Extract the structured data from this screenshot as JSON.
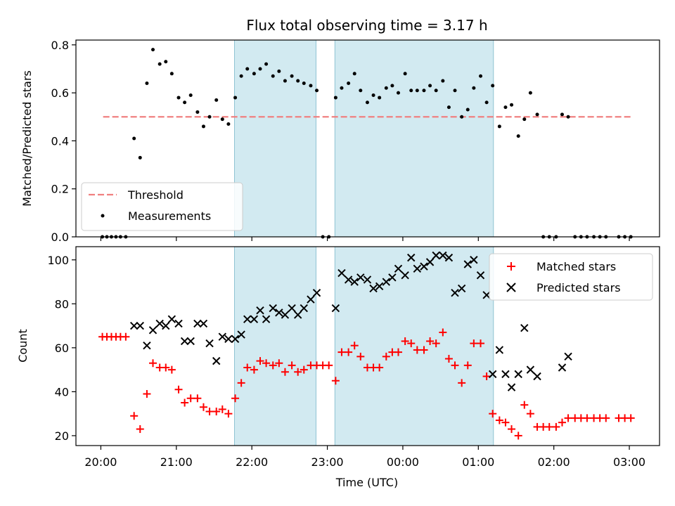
{
  "chart_data": {
    "title": "Flux total observing time = 3.17 h",
    "xlabel": "Time (UTC)",
    "x_unit": "hours since 20:00 UTC",
    "xlim": [
      -0.33,
      7.4
    ],
    "xticks": [
      0,
      1,
      2,
      3,
      4,
      5,
      6,
      7
    ],
    "xtick_labels": [
      "20:00",
      "21:00",
      "22:00",
      "23:00",
      "00:00",
      "01:00",
      "02:00",
      "03:00"
    ],
    "shaded_spans": [
      [
        1.77,
        2.85
      ],
      [
        3.1,
        5.2
      ]
    ],
    "span_color": "#add8e6",
    "panels": [
      {
        "id": "ratio",
        "type": "scatter",
        "ylabel": "Matched/Predicted stars",
        "ylim": [
          0,
          0.82
        ],
        "yticks": [
          0.0,
          0.2,
          0.4,
          0.6,
          0.8
        ],
        "ytick_labels": [
          "0.0",
          "0.2",
          "0.4",
          "0.6",
          "0.8"
        ],
        "threshold": {
          "name": "Threshold",
          "value": 0.5,
          "x_range": [
            0.03,
            7.03
          ],
          "color": "#f08080"
        },
        "legend": {
          "position": "lower-left",
          "entries": [
            "Threshold",
            "Measurements"
          ]
        },
        "series": [
          {
            "name": "Measurements",
            "color": "#000000",
            "marker": "dot",
            "points": [
              [
                0.02,
                0.0
              ],
              [
                0.08,
                0.0
              ],
              [
                0.14,
                0.0
              ],
              [
                0.2,
                0.0
              ],
              [
                0.26,
                0.0
              ],
              [
                0.33,
                0.0
              ],
              [
                0.44,
                0.41
              ],
              [
                0.52,
                0.33
              ],
              [
                0.61,
                0.64
              ],
              [
                0.69,
                0.78
              ],
              [
                0.78,
                0.72
              ],
              [
                0.86,
                0.73
              ],
              [
                0.94,
                0.68
              ],
              [
                1.03,
                0.58
              ],
              [
                1.11,
                0.56
              ],
              [
                1.19,
                0.59
              ],
              [
                1.28,
                0.52
              ],
              [
                1.36,
                0.46
              ],
              [
                1.44,
                0.5
              ],
              [
                1.53,
                0.57
              ],
              [
                1.61,
                0.49
              ],
              [
                1.69,
                0.47
              ],
              [
                1.78,
                0.58
              ],
              [
                1.86,
                0.67
              ],
              [
                1.94,
                0.7
              ],
              [
                2.03,
                0.68
              ],
              [
                2.11,
                0.7
              ],
              [
                2.19,
                0.72
              ],
              [
                2.28,
                0.67
              ],
              [
                2.36,
                0.69
              ],
              [
                2.44,
                0.65
              ],
              [
                2.53,
                0.67
              ],
              [
                2.61,
                0.65
              ],
              [
                2.69,
                0.64
              ],
              [
                2.78,
                0.63
              ],
              [
                2.86,
                0.61
              ],
              [
                2.94,
                0.0
              ],
              [
                3.02,
                0.0
              ],
              [
                3.11,
                0.58
              ],
              [
                3.19,
                0.62
              ],
              [
                3.28,
                0.64
              ],
              [
                3.36,
                0.68
              ],
              [
                3.44,
                0.61
              ],
              [
                3.53,
                0.56
              ],
              [
                3.61,
                0.59
              ],
              [
                3.69,
                0.58
              ],
              [
                3.78,
                0.62
              ],
              [
                3.86,
                0.63
              ],
              [
                3.94,
                0.6
              ],
              [
                4.03,
                0.68
              ],
              [
                4.11,
                0.61
              ],
              [
                4.19,
                0.61
              ],
              [
                4.28,
                0.61
              ],
              [
                4.36,
                0.63
              ],
              [
                4.44,
                0.61
              ],
              [
                4.53,
                0.65
              ],
              [
                4.61,
                0.54
              ],
              [
                4.69,
                0.61
              ],
              [
                4.78,
                0.5
              ],
              [
                4.86,
                0.53
              ],
              [
                4.94,
                0.62
              ],
              [
                5.03,
                0.67
              ],
              [
                5.11,
                0.56
              ],
              [
                5.19,
                0.63
              ],
              [
                5.28,
                0.46
              ],
              [
                5.36,
                0.54
              ],
              [
                5.44,
                0.55
              ],
              [
                5.53,
                0.42
              ],
              [
                5.61,
                0.49
              ],
              [
                5.69,
                0.6
              ],
              [
                5.78,
                0.51
              ],
              [
                5.86,
                0.0
              ],
              [
                5.94,
                0.0
              ],
              [
                6.03,
                0.0
              ],
              [
                6.11,
                0.51
              ],
              [
                6.19,
                0.5
              ],
              [
                6.28,
                0.0
              ],
              [
                6.36,
                0.0
              ],
              [
                6.44,
                0.0
              ],
              [
                6.53,
                0.0
              ],
              [
                6.61,
                0.0
              ],
              [
                6.69,
                0.0
              ],
              [
                6.86,
                0.0
              ],
              [
                6.94,
                0.0
              ],
              [
                7.02,
                0.0
              ]
            ]
          }
        ]
      },
      {
        "id": "counts",
        "type": "scatter",
        "ylabel": "Count",
        "ylim": [
          15.5,
          106
        ],
        "yticks": [
          20,
          40,
          60,
          80,
          100
        ],
        "ytick_labels": [
          "20",
          "40",
          "60",
          "80",
          "100"
        ],
        "legend": {
          "position": "top-right",
          "entries": [
            "Matched stars",
            "Predicted stars"
          ]
        },
        "series": [
          {
            "name": "Matched stars",
            "color": "#ff0000",
            "marker": "plus",
            "points": [
              [
                0.02,
                65
              ],
              [
                0.08,
                65
              ],
              [
                0.14,
                65
              ],
              [
                0.2,
                65
              ],
              [
                0.26,
                65
              ],
              [
                0.33,
                65
              ],
              [
                0.44,
                29
              ],
              [
                0.52,
                23
              ],
              [
                0.61,
                39
              ],
              [
                0.69,
                53
              ],
              [
                0.78,
                51
              ],
              [
                0.86,
                51
              ],
              [
                0.94,
                50
              ],
              [
                1.03,
                41
              ],
              [
                1.11,
                35
              ],
              [
                1.19,
                37
              ],
              [
                1.28,
                37
              ],
              [
                1.36,
                33
              ],
              [
                1.44,
                31
              ],
              [
                1.53,
                31
              ],
              [
                1.61,
                32
              ],
              [
                1.69,
                30
              ],
              [
                1.78,
                37
              ],
              [
                1.86,
                44
              ],
              [
                1.94,
                51
              ],
              [
                2.03,
                50
              ],
              [
                2.11,
                54
              ],
              [
                2.19,
                53
              ],
              [
                2.28,
                52
              ],
              [
                2.36,
                53
              ],
              [
                2.44,
                49
              ],
              [
                2.53,
                52
              ],
              [
                2.61,
                49
              ],
              [
                2.69,
                50
              ],
              [
                2.78,
                52
              ],
              [
                2.86,
                52
              ],
              [
                2.94,
                52
              ],
              [
                3.02,
                52
              ],
              [
                3.11,
                45
              ],
              [
                3.19,
                58
              ],
              [
                3.28,
                58
              ],
              [
                3.36,
                61
              ],
              [
                3.44,
                56
              ],
              [
                3.53,
                51
              ],
              [
                3.61,
                51
              ],
              [
                3.69,
                51
              ],
              [
                3.78,
                56
              ],
              [
                3.86,
                58
              ],
              [
                3.94,
                58
              ],
              [
                4.03,
                63
              ],
              [
                4.11,
                62
              ],
              [
                4.19,
                59
              ],
              [
                4.28,
                59
              ],
              [
                4.36,
                63
              ],
              [
                4.44,
                62
              ],
              [
                4.53,
                67
              ],
              [
                4.61,
                55
              ],
              [
                4.69,
                52
              ],
              [
                4.78,
                44
              ],
              [
                4.86,
                52
              ],
              [
                4.94,
                62
              ],
              [
                5.03,
                62
              ],
              [
                5.11,
                47
              ],
              [
                5.19,
                30
              ],
              [
                5.28,
                27
              ],
              [
                5.36,
                26
              ],
              [
                5.44,
                23
              ],
              [
                5.53,
                20
              ],
              [
                5.61,
                34
              ],
              [
                5.69,
                30
              ],
              [
                5.78,
                24
              ],
              [
                5.86,
                24
              ],
              [
                5.94,
                24
              ],
              [
                6.03,
                24
              ],
              [
                6.11,
                26
              ],
              [
                6.19,
                28
              ],
              [
                6.28,
                28
              ],
              [
                6.36,
                28
              ],
              [
                6.44,
                28
              ],
              [
                6.53,
                28
              ],
              [
                6.61,
                28
              ],
              [
                6.69,
                28
              ],
              [
                6.86,
                28
              ],
              [
                6.94,
                28
              ],
              [
                7.02,
                28
              ]
            ]
          },
          {
            "name": "Predicted stars",
            "color": "#000000",
            "marker": "x",
            "points": [
              [
                0.44,
                70
              ],
              [
                0.52,
                70
              ],
              [
                0.61,
                61
              ],
              [
                0.69,
                68
              ],
              [
                0.78,
                71
              ],
              [
                0.86,
                70
              ],
              [
                0.94,
                73
              ],
              [
                1.03,
                71
              ],
              [
                1.11,
                63
              ],
              [
                1.19,
                63
              ],
              [
                1.28,
                71
              ],
              [
                1.36,
                71
              ],
              [
                1.44,
                62
              ],
              [
                1.53,
                54
              ],
              [
                1.61,
                65
              ],
              [
                1.69,
                64
              ],
              [
                1.78,
                64
              ],
              [
                1.86,
                66
              ],
              [
                1.94,
                73
              ],
              [
                2.03,
                73
              ],
              [
                2.11,
                77
              ],
              [
                2.19,
                73
              ],
              [
                2.28,
                78
              ],
              [
                2.36,
                76
              ],
              [
                2.44,
                75
              ],
              [
                2.53,
                78
              ],
              [
                2.61,
                75
              ],
              [
                2.69,
                78
              ],
              [
                2.78,
                82
              ],
              [
                2.86,
                85
              ],
              [
                3.11,
                78
              ],
              [
                3.19,
                94
              ],
              [
                3.28,
                91
              ],
              [
                3.36,
                90
              ],
              [
                3.44,
                92
              ],
              [
                3.53,
                91
              ],
              [
                3.61,
                87
              ],
              [
                3.69,
                88
              ],
              [
                3.78,
                90
              ],
              [
                3.86,
                92
              ],
              [
                3.94,
                96
              ],
              [
                4.03,
                93
              ],
              [
                4.11,
                101
              ],
              [
                4.19,
                96
              ],
              [
                4.28,
                97
              ],
              [
                4.36,
                99
              ],
              [
                4.44,
                102
              ],
              [
                4.53,
                102
              ],
              [
                4.61,
                101
              ],
              [
                4.69,
                85
              ],
              [
                4.78,
                87
              ],
              [
                4.86,
                98
              ],
              [
                4.94,
                100
              ],
              [
                5.03,
                93
              ],
              [
                5.11,
                84
              ],
              [
                5.19,
                48
              ],
              [
                5.28,
                59
              ],
              [
                5.36,
                48
              ],
              [
                5.44,
                42
              ],
              [
                5.53,
                48
              ],
              [
                5.61,
                69
              ],
              [
                5.69,
                50
              ],
              [
                5.78,
                47
              ],
              [
                6.11,
                51
              ],
              [
                6.19,
                56
              ]
            ]
          }
        ]
      }
    ]
  }
}
